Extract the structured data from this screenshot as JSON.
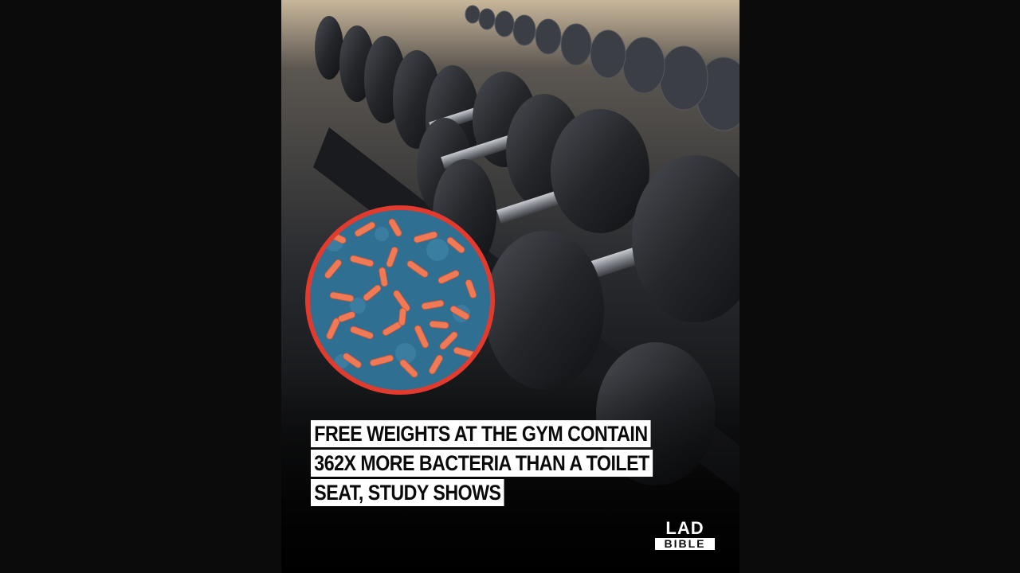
{
  "post": {
    "headline_lines": [
      "FREE WEIGHTS AT THE GYM CONTAIN",
      "362X MORE BACTERIA THAN A TOILET",
      "SEAT, STUDY SHOWS"
    ],
    "brand": {
      "top": "LAD",
      "bottom": "BIBLE"
    }
  },
  "colors": {
    "background": "#0b0b0b",
    "inset_border": "#e23b2e",
    "bacteria": "#f07a55",
    "inset_surface": "#2f6f92",
    "caption_bg": "#ffffff"
  }
}
